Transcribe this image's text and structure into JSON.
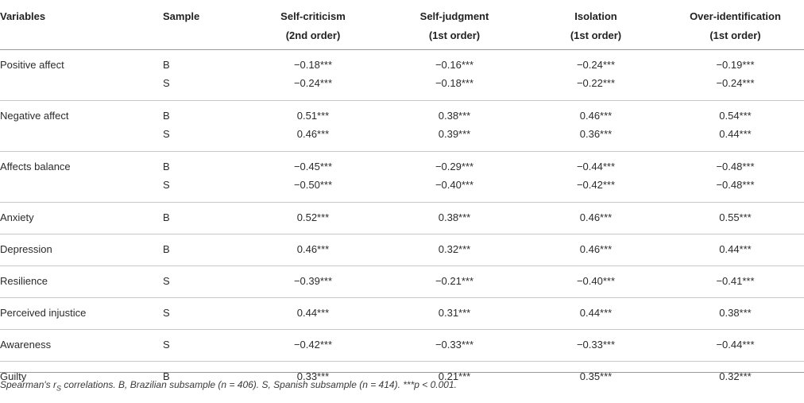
{
  "headers": {
    "variables": "Variables",
    "sample": "Sample",
    "col1_line1": "Self-criticism",
    "col1_line2": "(2nd order)",
    "col2_line1": "Self-judgment",
    "col2_line2": "(1st order)",
    "col3_line1": "Isolation",
    "col3_line2": "(1st order)",
    "col4_line1": "Over-identification",
    "col4_line2": "(1st order)"
  },
  "rows": [
    {
      "variable": "Positive affect",
      "samples": [
        "B",
        "S"
      ],
      "c1": [
        "−0.18***",
        "−0.24***"
      ],
      "c2": [
        "−0.16***",
        "−0.18***"
      ],
      "c3": [
        "−0.24***",
        "−0.22***"
      ],
      "c4": [
        "−0.19***",
        "−0.24***"
      ]
    },
    {
      "variable": "Negative affect",
      "samples": [
        "B",
        "S"
      ],
      "c1": [
        "0.51***",
        "0.46***"
      ],
      "c2": [
        "0.38***",
        "0.39***"
      ],
      "c3": [
        "0.46***",
        "0.36***"
      ],
      "c4": [
        "0.54***",
        "0.44***"
      ]
    },
    {
      "variable": "Affects balance",
      "samples": [
        "B",
        "S"
      ],
      "c1": [
        "−0.45***",
        "−0.50***"
      ],
      "c2": [
        "−0.29***",
        "−0.40***"
      ],
      "c3": [
        "−0.44***",
        "−0.42***"
      ],
      "c4": [
        "−0.48***",
        "−0.48***"
      ]
    },
    {
      "variable": "Anxiety",
      "samples": [
        "B"
      ],
      "c1": [
        "0.52***"
      ],
      "c2": [
        "0.38***"
      ],
      "c3": [
        "0.46***"
      ],
      "c4": [
        "0.55***"
      ]
    },
    {
      "variable": "Depression",
      "samples": [
        "B"
      ],
      "c1": [
        "0.46***"
      ],
      "c2": [
        "0.32***"
      ],
      "c3": [
        "0.46***"
      ],
      "c4": [
        "0.44***"
      ]
    },
    {
      "variable": "Resilience",
      "samples": [
        "S"
      ],
      "c1": [
        "−0.39***"
      ],
      "c2": [
        "−0.21***"
      ],
      "c3": [
        "−0.40***"
      ],
      "c4": [
        "−0.41***"
      ]
    },
    {
      "variable": "Perceived injustice",
      "samples": [
        "S"
      ],
      "c1": [
        "0.44***"
      ],
      "c2": [
        "0.31***"
      ],
      "c3": [
        "0.44***"
      ],
      "c4": [
        "0.38***"
      ]
    },
    {
      "variable": "Awareness",
      "samples": [
        "S"
      ],
      "c1": [
        "−0.42***"
      ],
      "c2": [
        "−0.33***"
      ],
      "c3": [
        "−0.33***"
      ],
      "c4": [
        "−0.44***"
      ]
    },
    {
      "variable": "Guilty",
      "samples": [
        "B"
      ],
      "c1": [
        "0.33***"
      ],
      "c2": [
        "0.21***"
      ],
      "c3": [
        "0.35***"
      ],
      "c4": [
        "0.32***"
      ]
    }
  ],
  "footnote": {
    "part1": "Spearman's r",
    "sub": "S",
    "part2": " correlations. B, Brazilian subsample (n = 406). S, Spanish subsample (n = 414). ***p < 0.001."
  }
}
